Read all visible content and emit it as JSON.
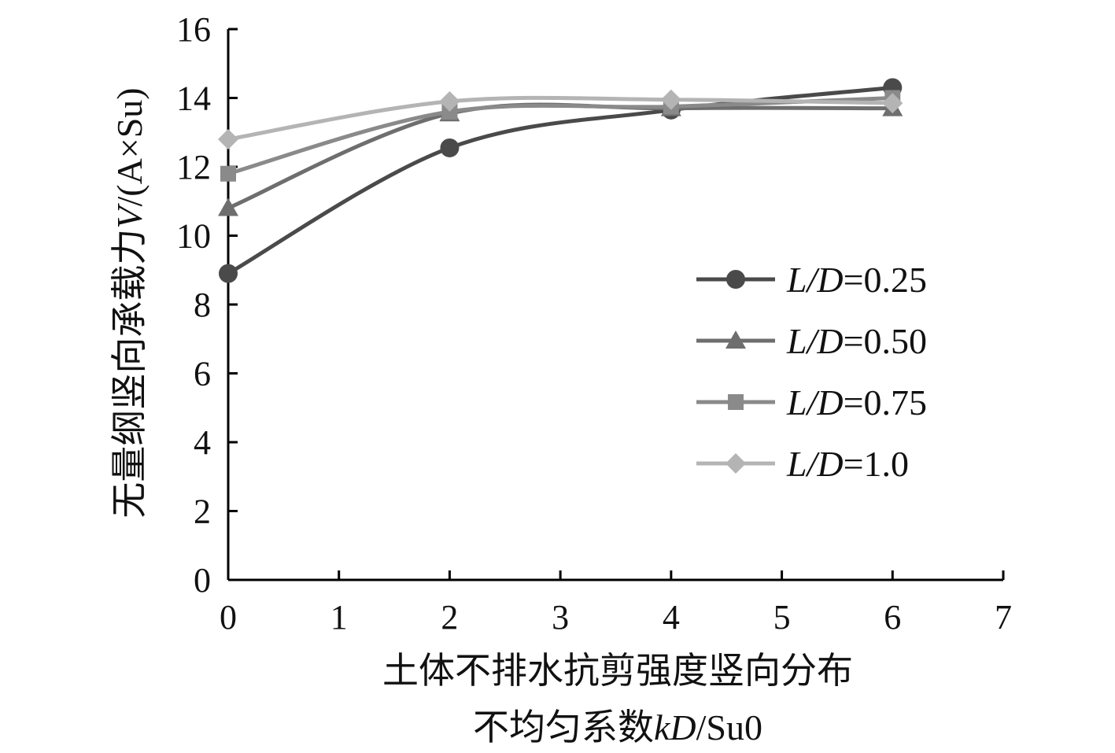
{
  "chart_data": {
    "type": "line",
    "xlim": [
      0,
      7
    ],
    "ylim": [
      0,
      16
    ],
    "x_ticks": [
      "0",
      "1",
      "2",
      "3",
      "4",
      "5",
      "6",
      "7"
    ],
    "y_ticks": [
      "0",
      "2",
      "4",
      "6",
      "8",
      "10",
      "12",
      "14",
      "16"
    ],
    "xlabel_line1": "土体不排水抗剪强度竖向分布",
    "xlabel_line2_prefix": "不均匀系数",
    "xlabel_line2_italic": "kD",
    "xlabel_line2_suffix": "/Su0",
    "ylabel_prefix": "无量纲竖向承载力",
    "ylabel_italic": "V",
    "ylabel_suffix": "/(A×Su)",
    "grid": false,
    "legend_position": "right-middle",
    "series": [
      {
        "label_italic": "L/D",
        "label_value": "=0.25",
        "marker": "circle",
        "color": "#4a4a4a",
        "x": [
          0,
          2,
          4,
          6
        ],
        "y": [
          8.9,
          12.55,
          13.65,
          14.3
        ]
      },
      {
        "label_italic": "L/D",
        "label_value": "=0.50",
        "marker": "triangle",
        "color": "#6e6e6e",
        "x": [
          0,
          2,
          4,
          6
        ],
        "y": [
          10.8,
          13.55,
          13.7,
          13.7
        ]
      },
      {
        "label_italic": "L/D",
        "label_value": "=0.75",
        "marker": "square",
        "color": "#8a8a8a",
        "x": [
          0,
          2,
          4,
          6
        ],
        "y": [
          11.8,
          13.6,
          13.75,
          14.0
        ]
      },
      {
        "label_italic": "L/D",
        "label_value": "=1.0",
        "marker": "diamond",
        "color": "#b4b4b4",
        "x": [
          0,
          2,
          4,
          6
        ],
        "y": [
          12.8,
          13.9,
          13.95,
          13.85
        ]
      }
    ]
  }
}
